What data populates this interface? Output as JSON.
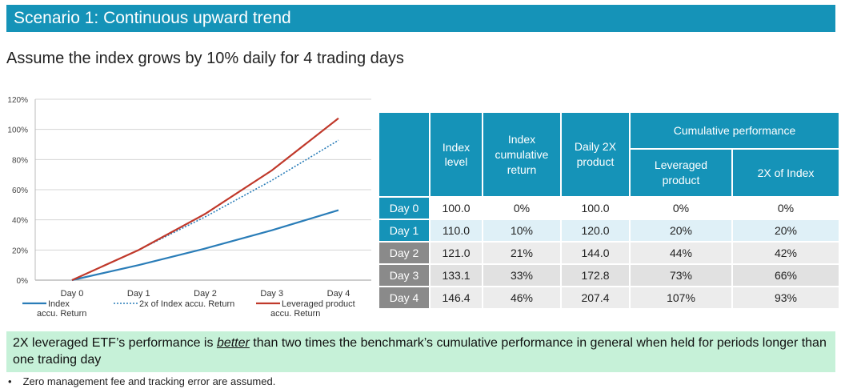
{
  "banner": {
    "title": "Scenario 1: Continuous upward trend"
  },
  "subtitle": "Assume the index grows by 10% daily for 4 trading days",
  "chart_data": {
    "type": "line",
    "categories": [
      "Day 0",
      "Day 1",
      "Day 2",
      "Day 3",
      "Day 4"
    ],
    "y_ticks": [
      "0%",
      "20%",
      "40%",
      "60%",
      "80%",
      "100%",
      "120%"
    ],
    "ylim": [
      0,
      120
    ],
    "grid": true,
    "legend_position": "bottom",
    "series": [
      {
        "name": "Index\naccu. Return",
        "values": [
          0,
          10,
          21,
          33.1,
          46.4
        ],
        "color": "#2a7db8",
        "style": "solid"
      },
      {
        "name": "2x of Index accu. Return",
        "values": [
          0,
          20,
          42,
          66.2,
          92.8
        ],
        "color": "#2a7db8",
        "style": "dotted"
      },
      {
        "name": "Leveraged product\naccu. Return",
        "values": [
          0,
          20,
          44,
          72.8,
          107.4
        ],
        "color": "#c0392b",
        "style": "solid"
      }
    ]
  },
  "table": {
    "headers": {
      "index_level": "Index level",
      "index_cum": "Index cumulative return",
      "daily2x": "Daily 2X product",
      "cumulative": "Cumulative performance",
      "leveraged": "Leveraged product",
      "twox": "2X of Index"
    },
    "rows": [
      {
        "day": "Day 0",
        "index_level": "100.0",
        "index_cum": "0%",
        "daily2x": "100.0",
        "leveraged": "0%",
        "twox": "0%"
      },
      {
        "day": "Day 1",
        "index_level": "110.0",
        "index_cum": "10%",
        "daily2x": "120.0",
        "leveraged": "20%",
        "twox": "20%"
      },
      {
        "day": "Day 2",
        "index_level": "121.0",
        "index_cum": "21%",
        "daily2x": "144.0",
        "leveraged": "44%",
        "twox": "42%"
      },
      {
        "day": "Day 3",
        "index_level": "133.1",
        "index_cum": "33%",
        "daily2x": "172.8",
        "leveraged": "73%",
        "twox": "66%"
      },
      {
        "day": "Day 4",
        "index_level": "146.4",
        "index_cum": "46%",
        "daily2x": "207.4",
        "leveraged": "107%",
        "twox": "93%"
      }
    ]
  },
  "note": {
    "part1": "2X leveraged ETF’s performance is ",
    "emph": "better",
    "part2": " than two times the benchmark’s cumulative performance in general when held for periods longer than one trading day"
  },
  "footnote": {
    "bullet": "•",
    "text": "Zero management fee and tracking error are assumed."
  }
}
